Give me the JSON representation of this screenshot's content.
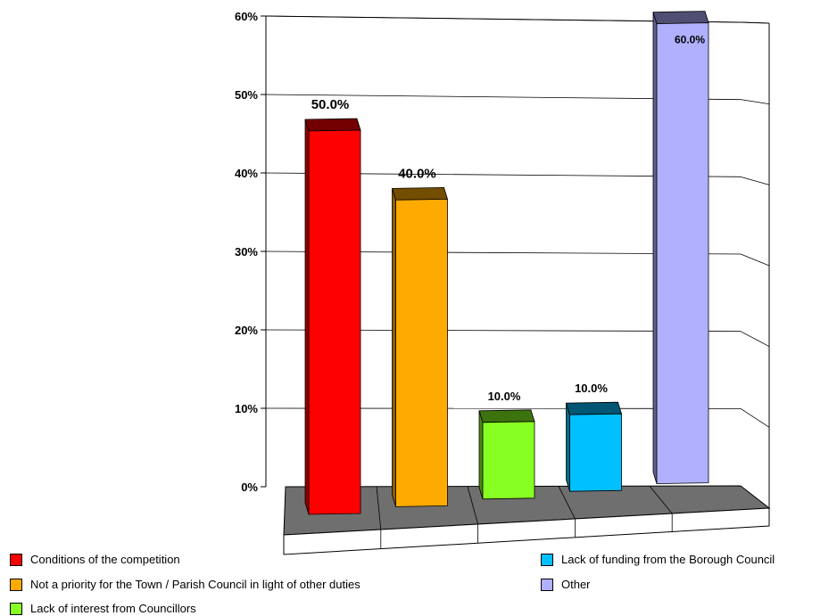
{
  "chart_data": {
    "type": "bar",
    "categories": [
      "Conditions of the competition",
      "Not a priority for the Town / Parish Council in light of other duties",
      "Lack of interest from Councillors",
      "Lack of funding from the Borough Council",
      "Other"
    ],
    "values": [
      50.0,
      40.0,
      10.0,
      10.0,
      60.0
    ],
    "data_labels": [
      "50.0%",
      "40.0%",
      "10.0%",
      "10.0%",
      "60.0%"
    ],
    "colors": [
      "#ff0000",
      "#ffaa00",
      "#88ff22",
      "#00c0ff",
      "#b0b0ff"
    ],
    "yticks": [
      "0%",
      "10%",
      "20%",
      "30%",
      "40%",
      "50%",
      "60%"
    ],
    "ylim": [
      0,
      60
    ],
    "grid": true,
    "legend_position": "bottom",
    "style": "3d-column"
  },
  "legend": {
    "items": [
      {
        "label": "Conditions of the competition",
        "color": "#ff0000"
      },
      {
        "label": "Not a priority for the Town / Parish Council in light of other duties",
        "color": "#ffaa00"
      },
      {
        "label": "Lack of interest from Councillors",
        "color": "#88ff22"
      },
      {
        "label": "Lack of funding from the Borough Council",
        "color": "#00c0ff"
      },
      {
        "label": "Other",
        "color": "#b0b0ff"
      }
    ]
  }
}
